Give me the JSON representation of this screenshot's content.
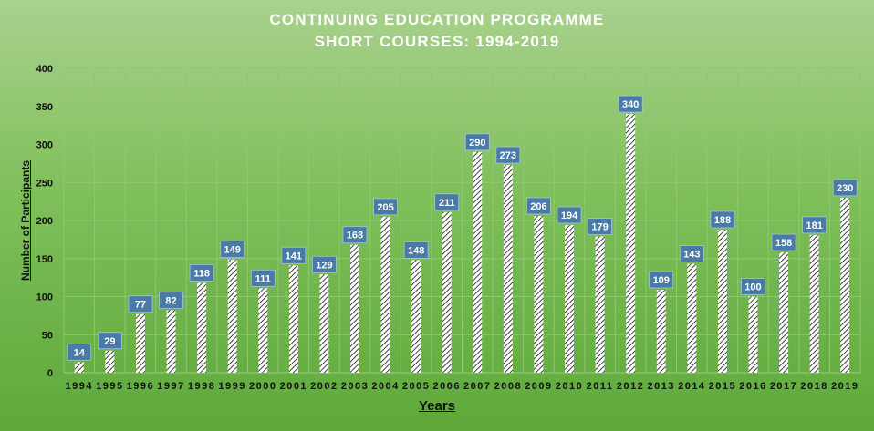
{
  "chart_data": {
    "type": "bar",
    "title": "CONTINUING EDUCATION PROGRAMME",
    "subtitle": "SHORT COURSES: 1994-2019",
    "xlabel": "Years",
    "ylabel": "Number of Participants",
    "ylim": [
      0,
      400
    ],
    "yticks": [
      "0",
      "50",
      "100",
      "150",
      "200",
      "250",
      "300",
      "350",
      "400"
    ],
    "grid": true,
    "categories": [
      "1994",
      "1995",
      "1996",
      "1997",
      "1998",
      "1999",
      "2000",
      "2001",
      "2002",
      "2003",
      "2004",
      "2005",
      "2006",
      "2007",
      "2008",
      "2009",
      "2010",
      "2011",
      "2012",
      "2013",
      "2014",
      "2015",
      "2016",
      "2017",
      "2018",
      "2019"
    ],
    "values": [
      14,
      29,
      77,
      82,
      118,
      149,
      111,
      141,
      129,
      168,
      205,
      148,
      211,
      290,
      273,
      206,
      194,
      179,
      340,
      109,
      143,
      188,
      100,
      158,
      181,
      230
    ]
  },
  "colors": {
    "label_box": "#4a7aa6",
    "label_text": "#ffffff",
    "bar_stripe": "#111111",
    "bar_fill": "#ffffff",
    "grid": "#8fc774"
  }
}
